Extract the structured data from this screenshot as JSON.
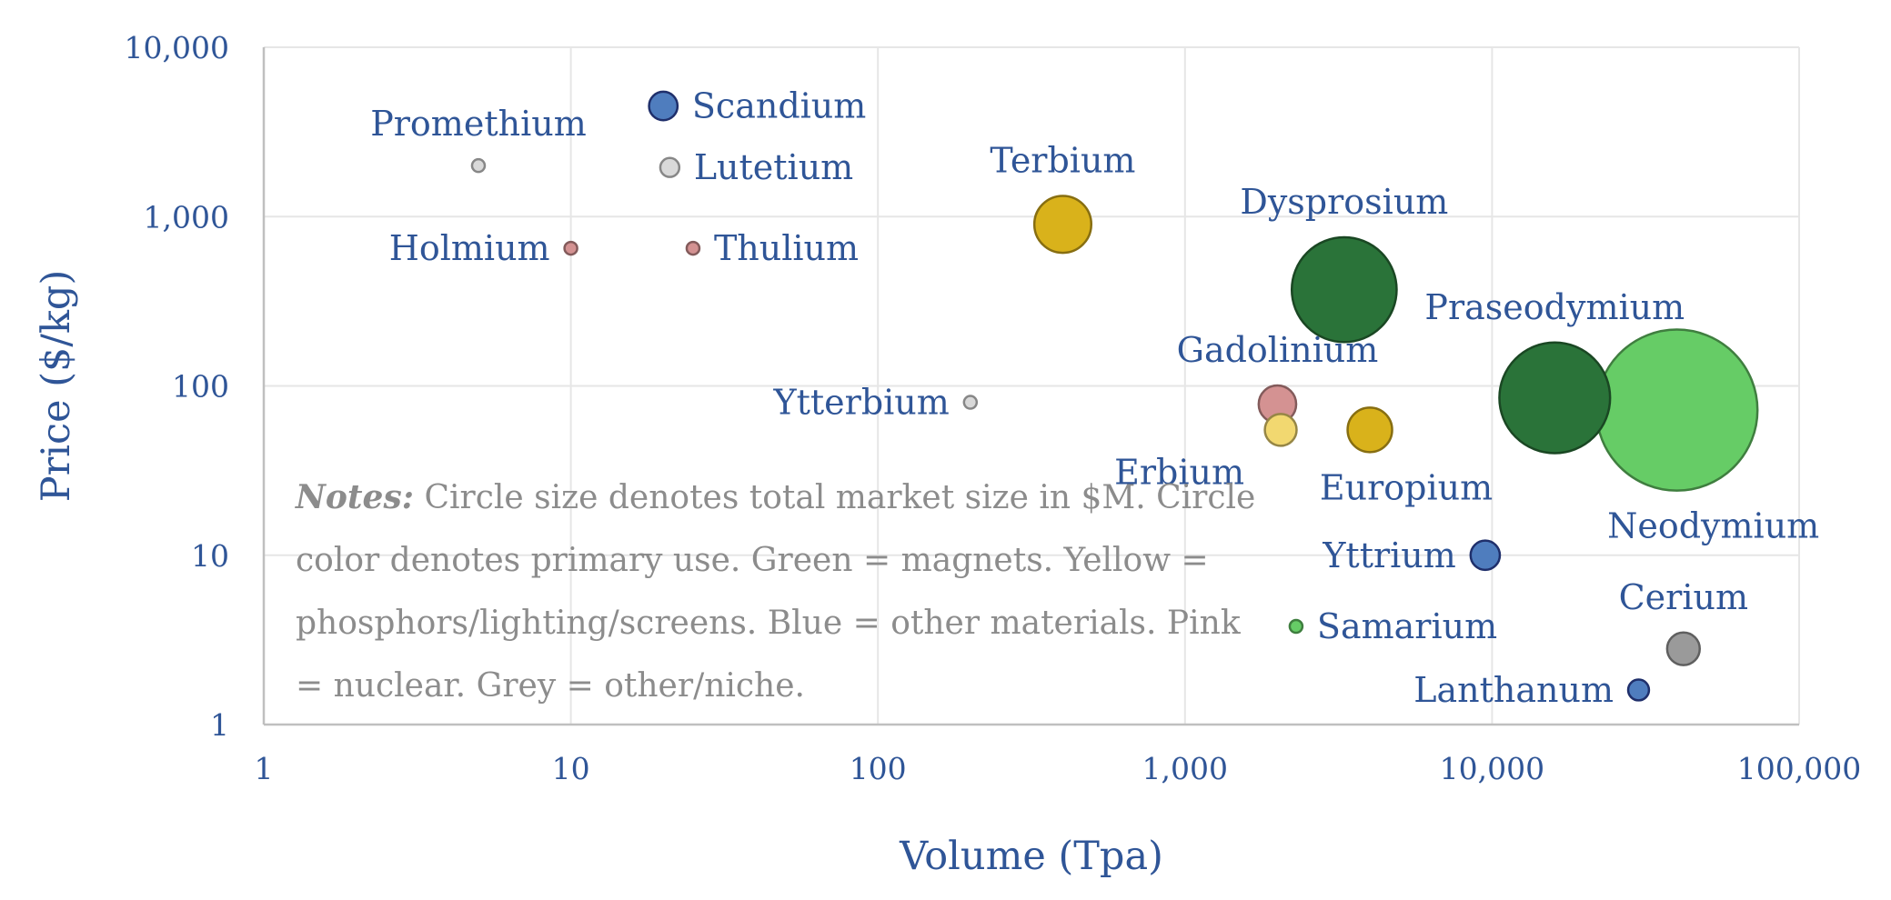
{
  "chart_data": {
    "type": "bubble",
    "xlabel": "Volume (Tpa)",
    "ylabel": "Price ($/kg)",
    "x_scale": "log",
    "y_scale": "log",
    "xlim": [
      1,
      100000
    ],
    "ylim": [
      1,
      10000
    ],
    "x_ticks": [
      "1",
      "10",
      "100",
      "1,000",
      "10,000",
      "100,000"
    ],
    "y_ticks": [
      "1",
      "10",
      "100",
      "1,000",
      "10,000"
    ],
    "grid": true,
    "colors": {
      "magnets_dark": "#2A7339",
      "magnets_light": "#66CC66",
      "phosphors": "#D9B21B",
      "phosphors_light": "#F2D870",
      "other_materials": "#4F7DBE",
      "nuclear": "#D49292",
      "niche": "#D9D9D9",
      "niche_dark": "#9A9A9A"
    },
    "points": [
      {
        "name": "Promethium",
        "x": 5,
        "y": 2000,
        "size": 10,
        "color": "#D9D9D9",
        "label_pos": "above"
      },
      {
        "name": "Scandium",
        "x": 20,
        "y": 4500,
        "size": 90,
        "color": "#4F7DBE",
        "label_pos": "right"
      },
      {
        "name": "Lutetium",
        "x": 21,
        "y": 1950,
        "size": 40,
        "color": "#D9D9D9",
        "label_pos": "right"
      },
      {
        "name": "Holmium",
        "x": 10,
        "y": 650,
        "size": 7,
        "color": "#D49292",
        "label_pos": "left"
      },
      {
        "name": "Thulium",
        "x": 25,
        "y": 650,
        "size": 16,
        "color": "#D49292",
        "label_pos": "right"
      },
      {
        "name": "Terbium",
        "x": 400,
        "y": 900,
        "size": 360,
        "color": "#D9B21B",
        "label_pos": "above"
      },
      {
        "name": "Dysprosium",
        "x": 3300,
        "y": 370,
        "size": 1220,
        "color": "#2A7339",
        "label_pos": "above"
      },
      {
        "name": "Ytterbium",
        "x": 200,
        "y": 80,
        "size": 16,
        "color": "#D9D9D9",
        "label_pos": "left"
      },
      {
        "name": "Gadolinium",
        "x": 2000,
        "y": 78,
        "size": 156,
        "color": "#D49292",
        "label_pos": "above"
      },
      {
        "name": "Erbium",
        "x": 2050,
        "y": 55,
        "size": 112,
        "color": "#F2D870",
        "label_pos": "below-left"
      },
      {
        "name": "Europium",
        "x": 4000,
        "y": 55,
        "size": 220,
        "color": "#D9B21B",
        "label_pos": "below"
      },
      {
        "name": "Praseodymium",
        "x": 16000,
        "y": 85,
        "size": 1360,
        "color": "#2A7339",
        "label_pos": "above"
      },
      {
        "name": "Neodymium",
        "x": 40000,
        "y": 72,
        "size": 2880,
        "color": "#66CC66",
        "label_pos": "below"
      },
      {
        "name": "Yttrium",
        "x": 9500,
        "y": 10,
        "size": 95,
        "color": "#4F7DBE",
        "label_pos": "left"
      },
      {
        "name": "Samarium",
        "x": 2300,
        "y": 3.8,
        "size": 9,
        "color": "#66CC66",
        "label_pos": "right"
      },
      {
        "name": "Cerium",
        "x": 42000,
        "y": 2.8,
        "size": 118,
        "color": "#9A9A9A",
        "label_pos": "above"
      },
      {
        "name": "Lanthanum",
        "x": 30000,
        "y": 1.6,
        "size": 48,
        "color": "#4F7DBE",
        "label_pos": "left"
      }
    ]
  },
  "notes": {
    "label": "Notes:",
    "text": " Circle size denotes total market size in $M. Circle color denotes primary use. Green = magnets. Yellow = phosphors/lighting/screens. Blue = other materials. Pink = nuclear. Grey = other/niche."
  }
}
